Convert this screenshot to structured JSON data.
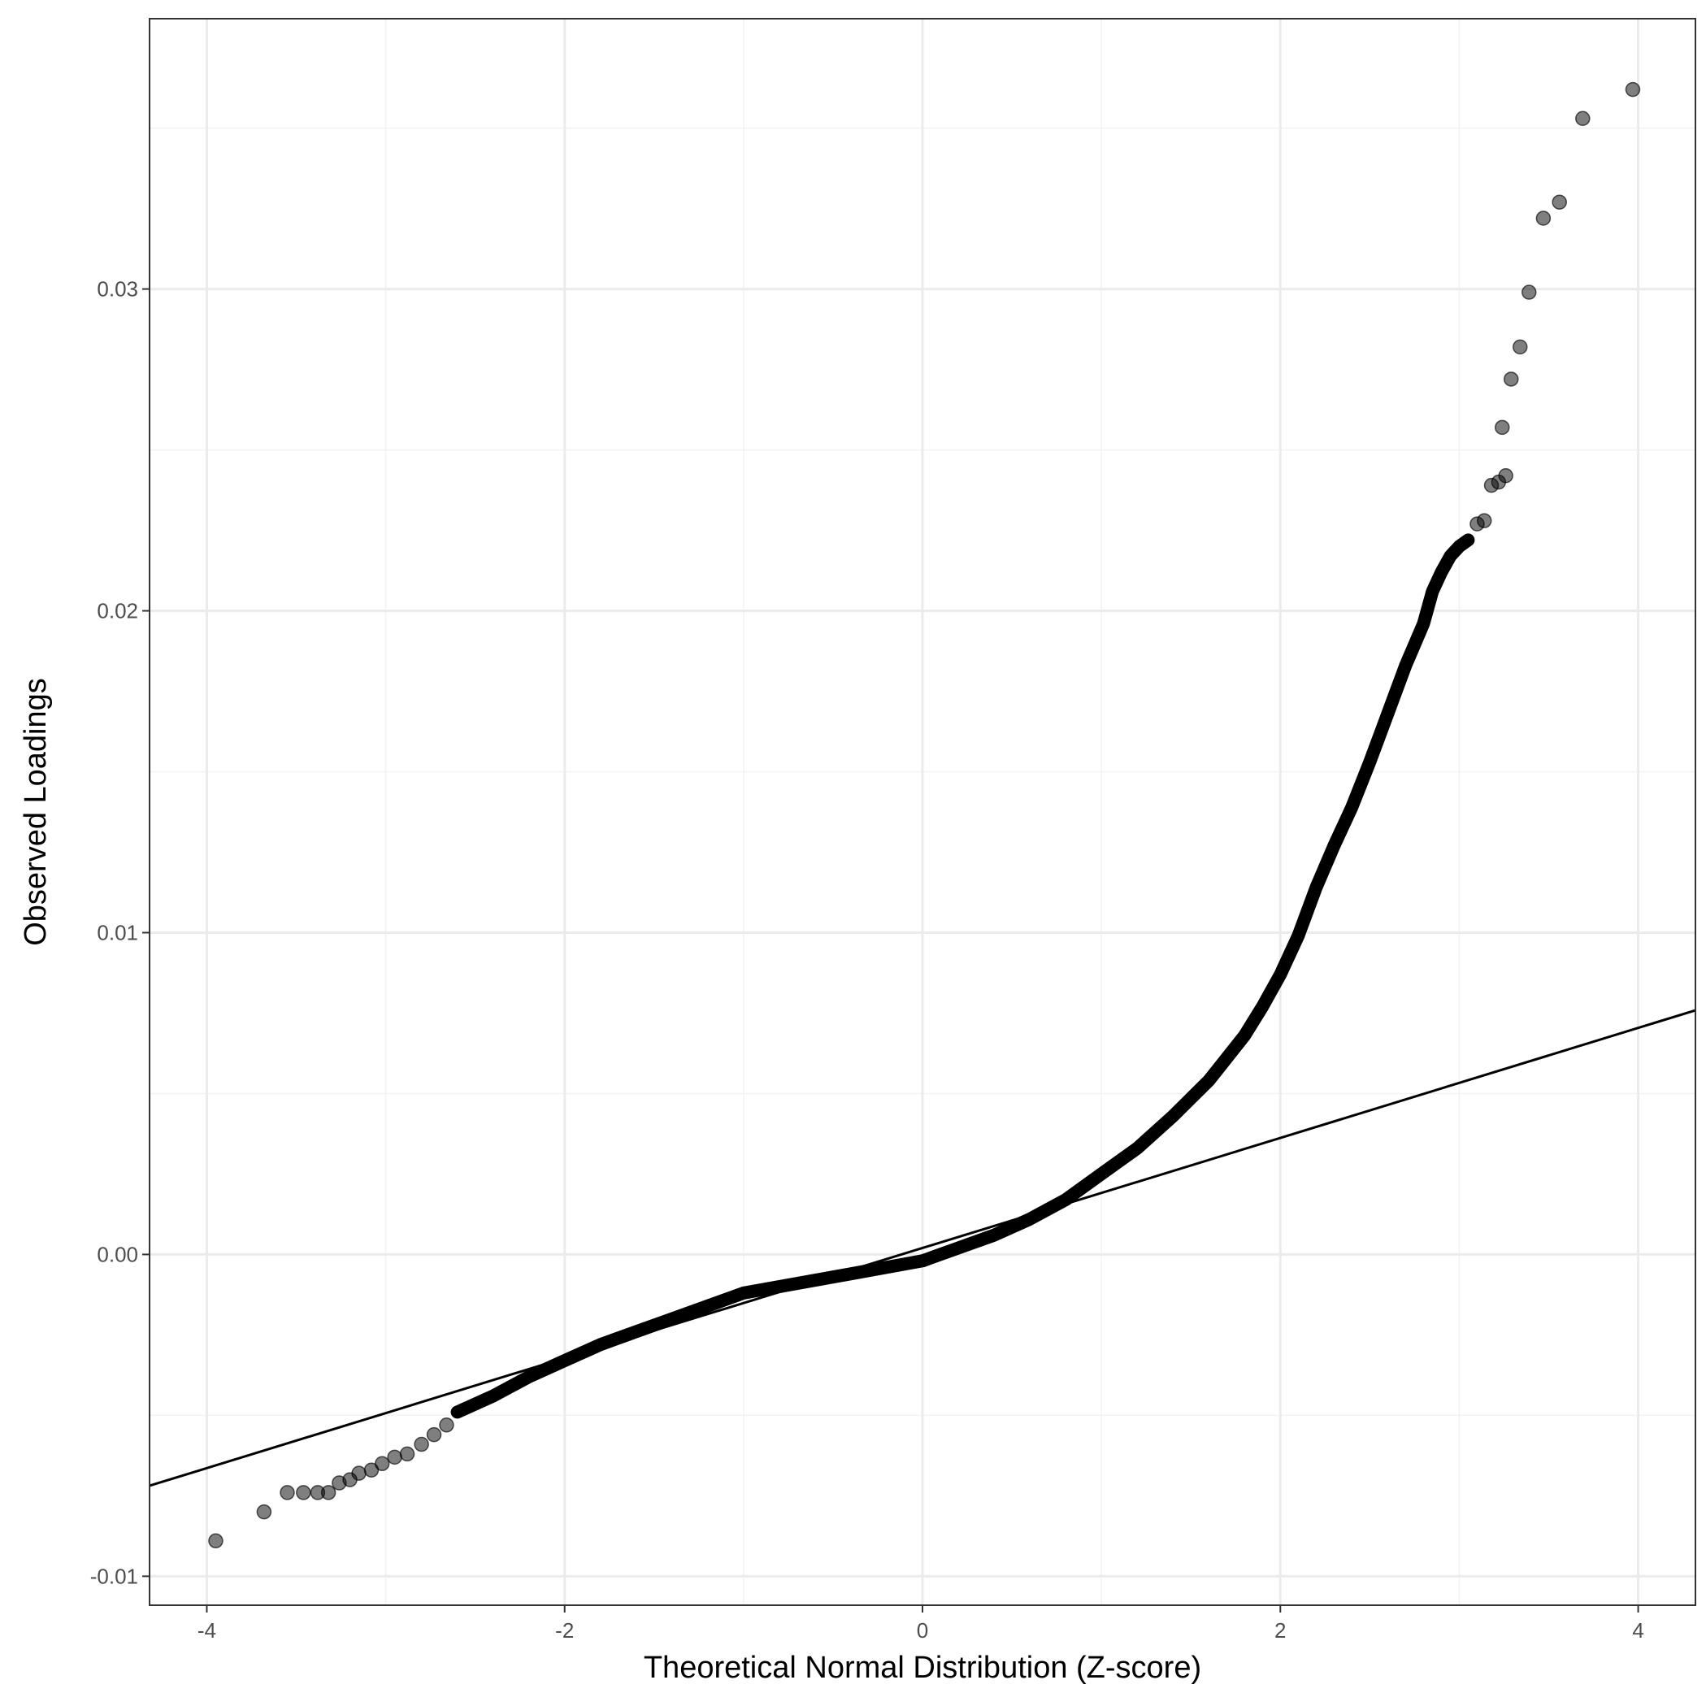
{
  "chart_data": {
    "type": "scatter",
    "title": "",
    "xlabel": "Theoretical Normal Distribution (Z-score)",
    "ylabel": "Observed Loadings",
    "xlim": [
      -4.32,
      4.32
    ],
    "ylim": [
      -0.0109,
      0.0384
    ],
    "x_ticks": [
      -4,
      -2,
      0,
      2,
      4
    ],
    "x_tick_labels": [
      "-4",
      "-2",
      "0",
      "2",
      "4"
    ],
    "y_ticks": [
      -0.01,
      0.0,
      0.01,
      0.02,
      0.03
    ],
    "y_tick_labels": [
      "-0.01",
      "0.00",
      "0.01",
      "0.02",
      "0.03"
    ],
    "grid": true,
    "theme": "black-and-white panel, light grey major and minor gridlines",
    "point_color": "#000000",
    "point_opacity": 0.5,
    "reference_line": {
      "intercept": 0.0002,
      "slope": 0.00171,
      "color": "#000000"
    },
    "curve_points": [
      [
        -2.6,
        -0.0049
      ],
      [
        -2.4,
        -0.0044
      ],
      [
        -2.2,
        -0.0038
      ],
      [
        -2.0,
        -0.0033
      ],
      [
        -1.8,
        -0.0028
      ],
      [
        -1.6,
        -0.0024
      ],
      [
        -1.4,
        -0.002
      ],
      [
        -1.2,
        -0.0016
      ],
      [
        -1.0,
        -0.0012
      ],
      [
        -0.8,
        -0.001
      ],
      [
        -0.6,
        -0.0008
      ],
      [
        -0.4,
        -0.0006
      ],
      [
        -0.2,
        -0.0004
      ],
      [
        0.0,
        -0.0002
      ],
      [
        0.2,
        0.0002
      ],
      [
        0.4,
        0.0006
      ],
      [
        0.6,
        0.0011
      ],
      [
        0.8,
        0.0017
      ],
      [
        1.0,
        0.0025
      ],
      [
        1.2,
        0.0033
      ],
      [
        1.4,
        0.0043
      ],
      [
        1.6,
        0.0054
      ],
      [
        1.8,
        0.0068
      ],
      [
        1.9,
        0.0077
      ],
      [
        2.0,
        0.0087
      ],
      [
        2.1,
        0.0099
      ],
      [
        2.2,
        0.0114
      ],
      [
        2.3,
        0.0127
      ],
      [
        2.4,
        0.0139
      ],
      [
        2.5,
        0.0153
      ],
      [
        2.6,
        0.0168
      ],
      [
        2.7,
        0.0183
      ],
      [
        2.8,
        0.0196
      ],
      [
        2.85,
        0.0206
      ],
      [
        2.9,
        0.0212
      ],
      [
        2.95,
        0.0217
      ],
      [
        3.0,
        0.022
      ],
      [
        3.05,
        0.0222
      ]
    ],
    "points": [
      [
        -3.95,
        -0.0089
      ],
      [
        -3.68,
        -0.008
      ],
      [
        -3.55,
        -0.0074
      ],
      [
        -3.46,
        -0.0074
      ],
      [
        -3.38,
        -0.0074
      ],
      [
        -3.32,
        -0.0074
      ],
      [
        -3.26,
        -0.0071
      ],
      [
        -3.2,
        -0.007
      ],
      [
        -3.15,
        -0.0068
      ],
      [
        -3.08,
        -0.0067
      ],
      [
        -3.02,
        -0.0065
      ],
      [
        -2.95,
        -0.0063
      ],
      [
        -2.88,
        -0.0062
      ],
      [
        -2.8,
        -0.0059
      ],
      [
        -2.73,
        -0.0056
      ],
      [
        -2.66,
        -0.0053
      ],
      [
        3.1,
        0.0227
      ],
      [
        3.14,
        0.0228
      ],
      [
        3.18,
        0.0239
      ],
      [
        3.22,
        0.024
      ],
      [
        3.26,
        0.0242
      ],
      [
        3.24,
        0.0257
      ],
      [
        3.29,
        0.0272
      ],
      [
        3.34,
        0.0282
      ],
      [
        3.39,
        0.0299
      ],
      [
        3.47,
        0.0322
      ],
      [
        3.56,
        0.0327
      ],
      [
        3.69,
        0.0353
      ],
      [
        3.97,
        0.0362
      ]
    ]
  }
}
